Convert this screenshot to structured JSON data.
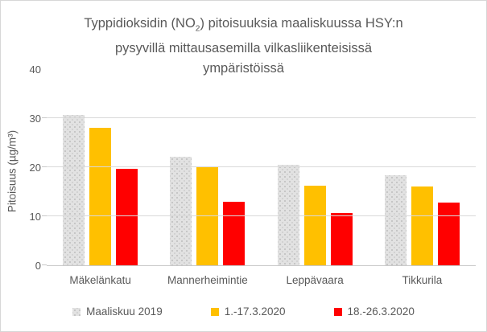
{
  "chart_data": {
    "type": "bar",
    "title": {
      "line1_pre": "Typpidioksidin (NO",
      "line1_sub": "2",
      "line1_post": ")  pitoisuuksia maaliskuussa HSY:n",
      "line2": "pysyvillä mittausasemilla vilkasliikenteisissä",
      "line3": "ympäristöissä"
    },
    "xlabel": "",
    "ylabel": "Pitoisuus (µg/m³)",
    "ylim": [
      0,
      40
    ],
    "yticks": [
      0,
      10,
      20,
      30,
      40
    ],
    "grid": true,
    "legend_position": "bottom",
    "categories": [
      "Mäkelänkatu",
      "Mannerheimintie",
      "Leppävaara",
      "Tikkurila"
    ],
    "series": [
      {
        "name": "Maaliskuu 2019",
        "color": "#d9d9d9",
        "pattern": "dotted",
        "values": [
          30.7,
          22.2,
          20.5,
          18.4
        ]
      },
      {
        "name": "1.-17.3.2020",
        "color": "#ffc000",
        "pattern": "solid",
        "values": [
          28.0,
          20.0,
          16.2,
          16.0
        ]
      },
      {
        "name": "18.-26.3.2020",
        "color": "#ff0000",
        "pattern": "solid",
        "values": [
          19.7,
          13.0,
          10.7,
          12.8
        ]
      }
    ]
  },
  "colors": {
    "text": "#595959",
    "gridline": "#d9d9d9",
    "axis_line": "#c9c9c9",
    "background": "#ffffff"
  }
}
